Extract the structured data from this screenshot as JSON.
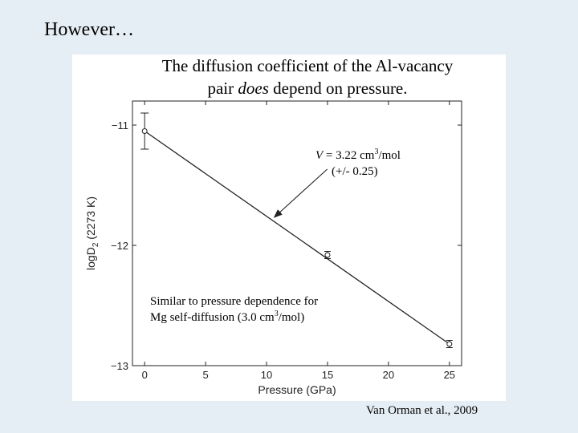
{
  "slide": {
    "title": "However…",
    "caption_line1": "The diffusion coefficient of the Al-vacancy",
    "caption_line2_pre": "pair ",
    "caption_line2_em": "does",
    "caption_line2_post": " depend on pressure.",
    "source": "Van Orman et al., 2009"
  },
  "annotations": {
    "volume_symbol": "V",
    "volume_value": " = 3.22 cm",
    "volume_exp": "3",
    "volume_unit": "/mol",
    "volume_error": "(+/- 0.25)",
    "similar_line1": "Similar to pressure dependence for",
    "similar_line2_pre": "Mg self-diffusion (3.0 cm",
    "similar_line2_exp": "3",
    "similar_line2_post": "/mol)"
  },
  "chart_data": {
    "type": "scatter",
    "title": "",
    "xlabel": "Pressure (GPa)",
    "ylabel_main": "logD",
    "ylabel_sub": "2",
    "ylabel_suffix": " (2273 K)",
    "xlim": [
      -1,
      26
    ],
    "ylim": [
      -13,
      -10.8
    ],
    "xticks": [
      0,
      5,
      10,
      15,
      20,
      25
    ],
    "yticks": [
      -11,
      -12,
      -13
    ],
    "points": [
      {
        "x": 0,
        "y": -11.05,
        "err": 0.15
      },
      {
        "x": 15,
        "y": -12.08,
        "err": 0.03
      },
      {
        "x": 25,
        "y": -12.82,
        "err": 0.03
      }
    ],
    "fit_line": {
      "x": [
        0,
        25
      ],
      "y": [
        -11.05,
        -12.82
      ]
    },
    "arrow_target": {
      "x": 10.5,
      "y": -11.78
    }
  }
}
